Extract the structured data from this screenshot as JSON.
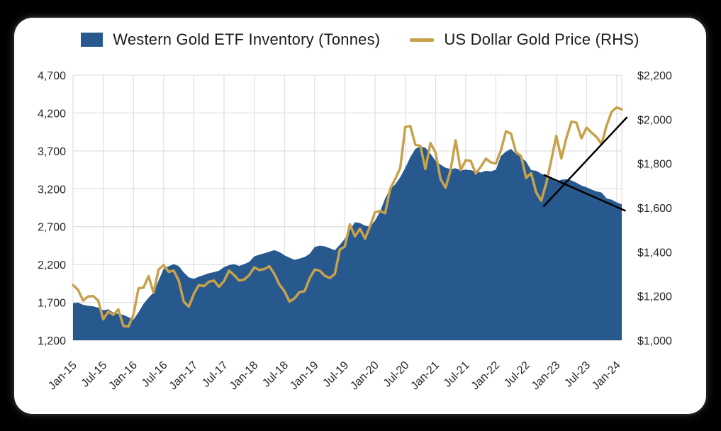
{
  "page": {
    "background": "#000000",
    "card_background": "#ffffff",
    "grid_color": "#d9d9d9",
    "text_color": "#262626"
  },
  "legend": [
    {
      "label": "Western Gold ETF Inventory (Tonnes)",
      "swatch": "area",
      "color": "#27598F"
    },
    {
      "label": "US Dollar Gold Price (RHS)",
      "swatch": "line",
      "color": "#C7A14C"
    }
  ],
  "chart_data": {
    "type": "area",
    "subtype": "combo-area-line",
    "title": "",
    "xlabel": "",
    "ylabel_left": "Western Gold ETF Inventory (Tonnes)",
    "ylabel_right": "US Dollar Gold Price (RHS)",
    "grid": true,
    "legend_position": "top",
    "x_unit": "month",
    "x_start": "Jan-15",
    "x_end": "Feb-24",
    "x_tick_labels": [
      "Jan-15",
      "Jul-15",
      "Jan-16",
      "Jul-16",
      "Jan-17",
      "Jul-17",
      "Jan-18",
      "Jul-18",
      "Jan-19",
      "Jul-19",
      "Jan-20",
      "Jul-20",
      "Jan-21",
      "Jul-21",
      "Jan-22",
      "Jul-22",
      "Jan-23",
      "Jul-23",
      "Jan-24"
    ],
    "left_axis": {
      "min": 1200,
      "max": 4700,
      "tick_step": 500,
      "tick_labels_top_to_bottom": [
        "4,700",
        "4,200",
        "3,700",
        "3,200",
        "2,700",
        "2,200",
        "1,700",
        "1,200"
      ]
    },
    "right_axis": {
      "min": 1000,
      "max": 2200,
      "tick_step": 200,
      "tick_labels_top_to_bottom": [
        "$2,200",
        "$2,000",
        "$1,800",
        "$1,600",
        "$1,400",
        "$1,200",
        "$1,000"
      ]
    },
    "series": [
      {
        "name": "Western Gold ETF Inventory (Tonnes)",
        "type": "area",
        "axis": "left",
        "color": "#27598F",
        "values": [
          1690,
          1697,
          1668,
          1655,
          1648,
          1630,
          1595,
          1610,
          1565,
          1548,
          1535,
          1505,
          1472,
          1570,
          1680,
          1762,
          1832,
          1990,
          2145,
          2178,
          2205,
          2180,
          2095,
          2030,
          2012,
          2040,
          2062,
          2085,
          2100,
          2118,
          2166,
          2192,
          2205,
          2182,
          2205,
          2235,
          2307,
          2330,
          2348,
          2370,
          2390,
          2365,
          2322,
          2290,
          2262,
          2278,
          2298,
          2340,
          2432,
          2448,
          2440,
          2415,
          2388,
          2460,
          2542,
          2660,
          2758,
          2748,
          2712,
          2700,
          2780,
          2900,
          3072,
          3196,
          3259,
          3352,
          3477,
          3617,
          3727,
          3758,
          3742,
          3664,
          3571,
          3520,
          3477,
          3460,
          3470,
          3445,
          3452,
          3445,
          3430,
          3415,
          3437,
          3430,
          3452,
          3633,
          3690,
          3727,
          3660,
          3618,
          3560,
          3446,
          3438,
          3400,
          3368,
          3350,
          3290,
          3320,
          3326,
          3310,
          3280,
          3243,
          3220,
          3190,
          3165,
          3150,
          3072,
          3056,
          3020,
          2994
        ]
      },
      {
        "name": "US Dollar Gold Price (RHS)",
        "type": "line",
        "axis": "right",
        "color": "#C7A14C",
        "values": [
          1250,
          1228,
          1180,
          1198,
          1200,
          1180,
          1095,
          1130,
          1115,
          1140,
          1065,
          1062,
          1115,
          1235,
          1238,
          1290,
          1215,
          1320,
          1340,
          1310,
          1315,
          1270,
          1175,
          1152,
          1210,
          1250,
          1245,
          1265,
          1270,
          1242,
          1268,
          1315,
          1295,
          1270,
          1275,
          1295,
          1330,
          1318,
          1322,
          1335,
          1300,
          1252,
          1222,
          1175,
          1190,
          1218,
          1222,
          1280,
          1320,
          1315,
          1292,
          1282,
          1300,
          1410,
          1425,
          1525,
          1470,
          1505,
          1460,
          1515,
          1580,
          1585,
          1575,
          1685,
          1730,
          1780,
          1965,
          1970,
          1885,
          1880,
          1775,
          1893,
          1850,
          1730,
          1690,
          1770,
          1905,
          1770,
          1815,
          1812,
          1755,
          1785,
          1822,
          1805,
          1800,
          1860,
          1946,
          1935,
          1850,
          1835,
          1735,
          1756,
          1670,
          1632,
          1710,
          1815,
          1925,
          1823,
          1915,
          1990,
          1985,
          1914,
          1962,
          1940,
          1920,
          1888,
          1973,
          2035,
          2054,
          2045
        ]
      }
    ],
    "annotations": [
      {
        "type": "trend-line-up",
        "color": "#000000",
        "from_frac": [
          0.858,
          0.494
        ],
        "to_frac": [
          1.009,
          0.16
        ]
      },
      {
        "type": "trend-line-down",
        "color": "#000000",
        "from_frac": [
          0.859,
          0.377
        ],
        "to_frac": [
          1.006,
          0.511
        ]
      }
    ]
  }
}
